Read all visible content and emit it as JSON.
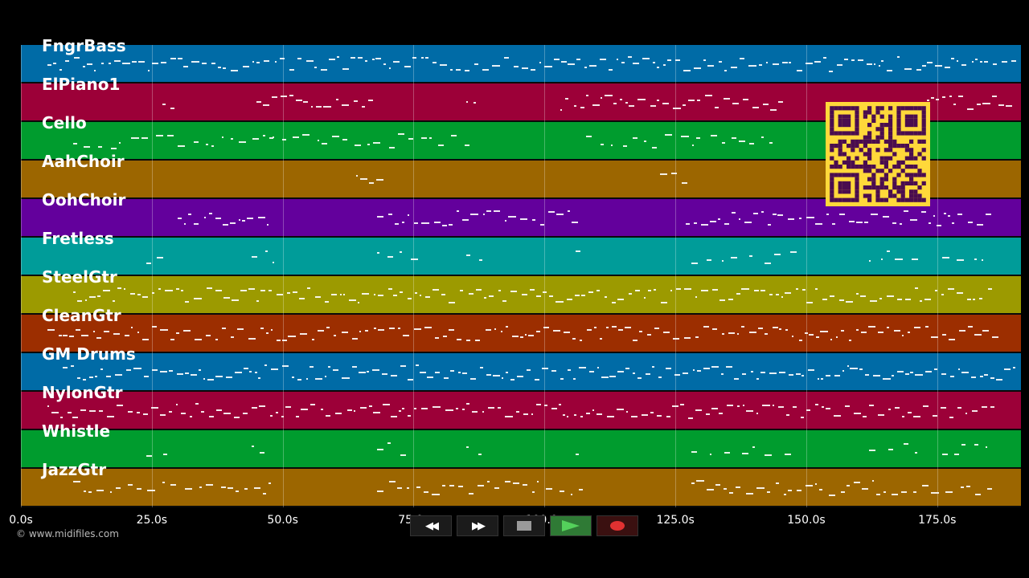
{
  "app": {
    "copyright": "© www.midifiles.com"
  },
  "tracks": [
    {
      "name": "FngrBass",
      "color": "#006ba6"
    },
    {
      "name": "ElPiano1",
      "color": "#9c0038"
    },
    {
      "name": "Cello",
      "color": "#009c2e"
    },
    {
      "name": "AahChoir",
      "color": "#9c6600"
    },
    {
      "name": "OohChoir",
      "color": "#63009c"
    },
    {
      "name": "Fretless",
      "color": "#009c99"
    },
    {
      "name": "SteelGtr",
      "color": "#9c9a00"
    },
    {
      "name": "CleanGtr",
      "color": "#9c2e00"
    },
    {
      "name": "GM Drums",
      "color": "#006ba6"
    },
    {
      "name": "NylonGtr",
      "color": "#9c0038"
    },
    {
      "name": "Whistle",
      "color": "#009c2e"
    },
    {
      "name": "JazzGtr",
      "color": "#9c6600"
    }
  ],
  "timeline": {
    "max_seconds": 191,
    "ticks": [
      "0.0s",
      "25.0s",
      "50.0s",
      "75.0s",
      "100.0s",
      "125.0s",
      "150.0s",
      "175.0s"
    ],
    "tick_values": [
      0,
      25,
      50,
      75,
      100,
      125,
      150,
      175
    ]
  },
  "transport": {
    "rewind_icon": "rewind-icon",
    "fast_forward_icon": "fast-forward-icon",
    "stop_icon": "stop-icon",
    "play_icon": "play-icon",
    "record_icon": "record-icon"
  },
  "qr_code": {
    "icon": "qr-code-icon",
    "fg": "#4a0d4f",
    "bg": "#ffd83a"
  }
}
